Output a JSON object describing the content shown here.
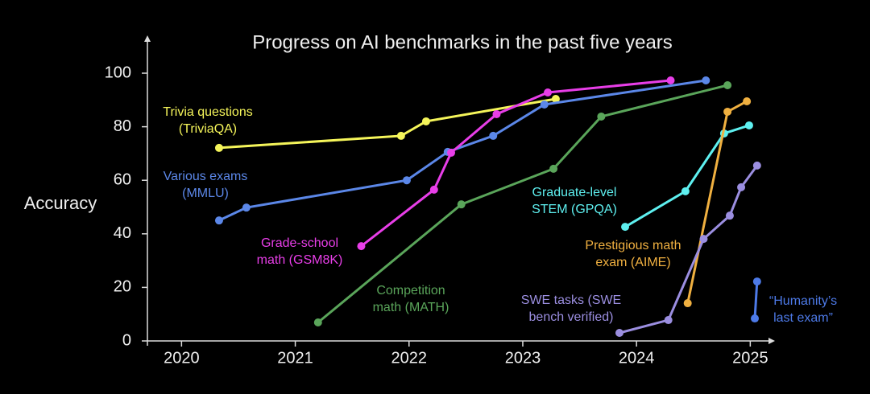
{
  "chart_data": {
    "type": "line",
    "title": "Progress on AI benchmarks in the past five years",
    "y_label": "Accuracy",
    "xlim": [
      2019.7,
      2025.2
    ],
    "ylim": [
      0,
      114
    ],
    "xticks": [
      2020,
      2021,
      2022,
      2023,
      2024,
      2025
    ],
    "yticks": [
      0,
      20,
      40,
      60,
      80,
      100
    ],
    "series": [
      {
        "name": "Trivia questions (TriviaQA)",
        "color": "#f5f55a",
        "x": [
          2020.33,
          2021.93,
          2022.15,
          2023.29
        ],
        "values": [
          72.1,
          76.6,
          82,
          90.4
        ]
      },
      {
        "name": "Various exams (MMLU)",
        "color": "#5b87e8",
        "x": [
          2020.33,
          2020.57,
          2021.98,
          2022.34,
          2022.74,
          2023.19,
          2024.61
        ],
        "values": [
          45,
          49.8,
          60,
          70.6,
          76.6,
          88.3,
          97.3
        ]
      },
      {
        "name": "Grade-school math (GSM8K)",
        "color": "#e83ee8",
        "x": [
          2021.58,
          2022.22,
          2022.37,
          2022.77,
          2023.22,
          2024.3
        ],
        "values": [
          35.4,
          56.5,
          70.3,
          84.7,
          92.8,
          97.3
        ]
      },
      {
        "name": "Competition math (MATH)",
        "color": "#5aa55a",
        "x": [
          2021.2,
          2022.46,
          2023.27,
          2023.69,
          2024.8
        ],
        "values": [
          6.9,
          51,
          64.3,
          83.8,
          95.5
        ]
      },
      {
        "name": "Graduate-level STEM (GPQA)",
        "color": "#5ef0f0",
        "x": [
          2023.9,
          2024.43,
          2024.77,
          2024.99
        ],
        "values": [
          42.6,
          55.9,
          77.5,
          80.5
        ]
      },
      {
        "name": "Prestigious math exam (AIME)",
        "color": "#f0b040",
        "x": [
          2024.45,
          2024.8,
          2024.97
        ],
        "values": [
          14.1,
          85.6,
          89.5
        ]
      },
      {
        "name": "SWE tasks (SWE bench verified)",
        "color": "#9b8ee0",
        "x": [
          2023.85,
          2024.28,
          2024.59,
          2024.82,
          2024.92,
          2025.06
        ],
        "values": [
          3,
          7.8,
          38.1,
          46.8,
          57.4,
          65.5
        ]
      },
      {
        "name": "“Humanity’s last exam”",
        "color": "#4d7ae8",
        "x": [
          2025.04,
          2025.06
        ],
        "values": [
          8.4,
          22.2
        ]
      }
    ]
  }
}
